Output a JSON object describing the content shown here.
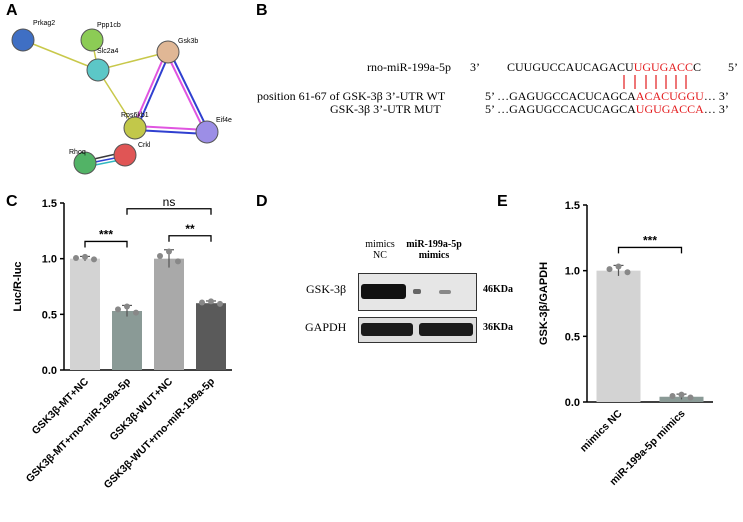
{
  "panels": {
    "a": "A",
    "b": "B",
    "c": "C",
    "d": "D",
    "e": "E"
  },
  "network": {
    "nodes": [
      {
        "id": "Prkag2",
        "label": "Prkag2",
        "color": "#3f6fc4"
      },
      {
        "id": "Ppp1cb",
        "label": "Ppp1cb",
        "color": "#8ccc55"
      },
      {
        "id": "Slc2a4",
        "label": "Slc2a4",
        "color": "#5cc7c7"
      },
      {
        "id": "Gsk3b",
        "label": "Gsk3b",
        "color": "#e0b795"
      },
      {
        "id": "Rps6kb1",
        "label": "Rps6kb1",
        "color": "#c2c84a"
      },
      {
        "id": "Eif4e",
        "label": "Eif4e",
        "color": "#9c8ee6"
      },
      {
        "id": "Rhoq",
        "label": "Rhoq",
        "color": "#52b366"
      },
      {
        "id": "Crkl",
        "label": "Crkl",
        "color": "#e05555"
      }
    ]
  },
  "sequence": {
    "row1": {
      "label": "rno-miR-199a-5p",
      "end5": "3’",
      "black": "CUUGUCCAUCAGACU",
      "red": "UGUGACC",
      "black2": "C",
      "end3": "5’"
    },
    "row2": {
      "label": "position 61-67 of GSK-3β 3’-UTR WT",
      "end5": "5’ …GAGUGCCACUCAGCA",
      "red": "ACACUGGU",
      "end3": "… 3’"
    },
    "row3": {
      "label": "GSK-3β 3’-UTR MUT",
      "end5": "5’ …GAGUGCCACUCAGCA",
      "red": "UGUGACCA",
      "end3": "… 3’"
    }
  },
  "chart_c": {
    "chart_data": {
      "type": "bar",
      "categories": [
        "GSK3β-MT+NC",
        "GSK3β-MT+rno-miR-199a-5p",
        "GSK3β-WUT+NC",
        "GSK3β-WUT+rno-miR-199a-5p"
      ],
      "values": [
        1.0,
        0.53,
        1.0,
        0.6
      ],
      "errors": [
        0.02,
        0.05,
        0.08,
        0.02
      ],
      "ylabel": "Luc/R-luc",
      "ylim": [
        0,
        1.5
      ],
      "yticks": [
        "0.0",
        "0.5",
        "1.0",
        "1.5"
      ],
      "annotations": [
        {
          "text": "***",
          "between": [
            0,
            1
          ]
        },
        {
          "text": "ns",
          "between": [
            1,
            3
          ]
        },
        {
          "text": "**",
          "between": [
            2,
            3
          ]
        }
      ],
      "colors": [
        "#d3d3d3",
        "#8a9a96",
        "#a9a9a9",
        "#5a5a5a"
      ]
    }
  },
  "blot": {
    "col1": "mimics\nNC",
    "col1_line1": "mimics",
    "col1_line2": "NC",
    "col2_line1": "miR-199a-5p",
    "col2_line2": "mimics",
    "row1_label": "GSK-3β",
    "row1_size": "46KDa",
    "row2_label": "GAPDH",
    "row2_size": "36KDa"
  },
  "chart_e": {
    "chart_data": {
      "type": "bar",
      "categories": [
        "mimics NC",
        "miR-199a-5p mimics"
      ],
      "values": [
        1.0,
        0.04
      ],
      "errors": [
        0.04,
        0.02
      ],
      "ylabel": "GSK-3β/GAPDH",
      "ylim": [
        0,
        1.5
      ],
      "yticks": [
        "0.0",
        "0.5",
        "1.0",
        "1.5"
      ],
      "annotations": [
        {
          "text": "***",
          "between": [
            0,
            1
          ]
        }
      ],
      "colors": [
        "#d3d3d3",
        "#8a9a96"
      ]
    }
  }
}
